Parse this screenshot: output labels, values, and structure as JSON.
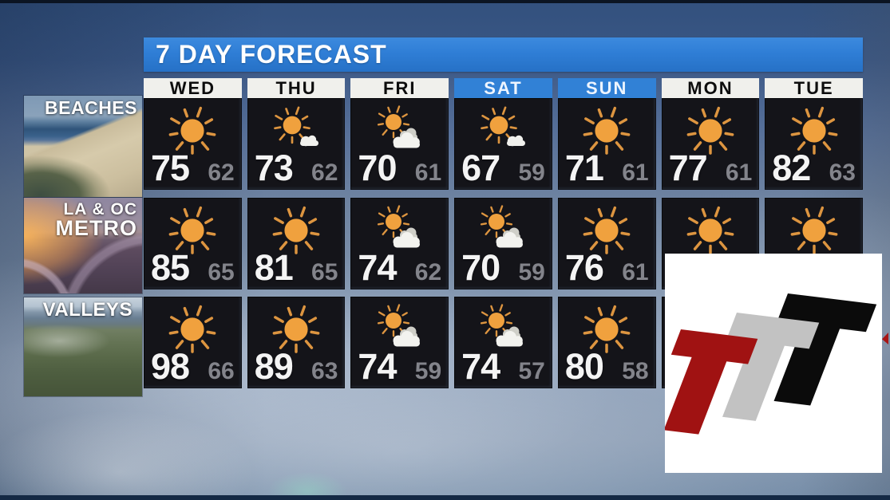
{
  "title": "7 DAY FORECAST",
  "days": [
    {
      "label": "WED",
      "style": "weekday"
    },
    {
      "label": "THU",
      "style": "weekday"
    },
    {
      "label": "FRI",
      "style": "weekday"
    },
    {
      "label": "SAT",
      "style": "weekend"
    },
    {
      "label": "SUN",
      "style": "weekend"
    },
    {
      "label": "MON",
      "style": "weekday"
    },
    {
      "label": "TUE",
      "style": "weekday"
    }
  ],
  "regions": [
    {
      "label_lines": [
        "BEACHES"
      ],
      "photo": "beach-aerial-photo",
      "forecast": [
        {
          "icon": "sunny",
          "high": "75",
          "low": "62"
        },
        {
          "icon": "mostly-sunny",
          "high": "73",
          "low": "62"
        },
        {
          "icon": "partly-cloudy",
          "high": "70",
          "low": "61"
        },
        {
          "icon": "mostly-sunny",
          "high": "67",
          "low": "59"
        },
        {
          "icon": "sunny",
          "high": "71",
          "low": "61"
        },
        {
          "icon": "sunny",
          "high": "77",
          "low": "61"
        },
        {
          "icon": "sunny",
          "high": "82",
          "low": "63"
        }
      ]
    },
    {
      "label_lines": [
        "LA & OC",
        "METRO"
      ],
      "photo": "freeway-sunset-photo",
      "forecast": [
        {
          "icon": "sunny",
          "high": "85",
          "low": "65"
        },
        {
          "icon": "sunny",
          "high": "81",
          "low": "65"
        },
        {
          "icon": "partly-cloudy",
          "high": "74",
          "low": "62"
        },
        {
          "icon": "partly-cloudy",
          "high": "70",
          "low": "59"
        },
        {
          "icon": "sunny",
          "high": "76",
          "low": "61"
        },
        {
          "icon": "sunny",
          "high": "",
          "low": ""
        },
        {
          "icon": "sunny",
          "high": "",
          "low": ""
        }
      ]
    },
    {
      "label_lines": [
        "VALLEYS"
      ],
      "photo": "valley-aerial-photo",
      "forecast": [
        {
          "icon": "sunny",
          "high": "98",
          "low": "66"
        },
        {
          "icon": "sunny",
          "high": "89",
          "low": "63"
        },
        {
          "icon": "partly-cloudy",
          "high": "74",
          "low": "59"
        },
        {
          "icon": "partly-cloudy",
          "high": "74",
          "low": "57"
        },
        {
          "icon": "sunny",
          "high": "80",
          "low": "58"
        },
        {
          "icon": "",
          "high": "",
          "low": ""
        },
        {
          "icon": "",
          "high": "",
          "low": ""
        }
      ]
    }
  ],
  "logo": {
    "description": "three overlapping slanted T letters",
    "colors": {
      "red": "#a01212",
      "gray": "#c2c2c2",
      "black": "#0b0b0b"
    }
  },
  "colors": {
    "title_bar_blue": "#2f7ed6",
    "weekend_header_blue": "#3181d6",
    "cell_background": "#141419",
    "sun_orange": "#f0a13e",
    "high_temp": "#f4f4f4",
    "low_temp": "#83848b"
  }
}
